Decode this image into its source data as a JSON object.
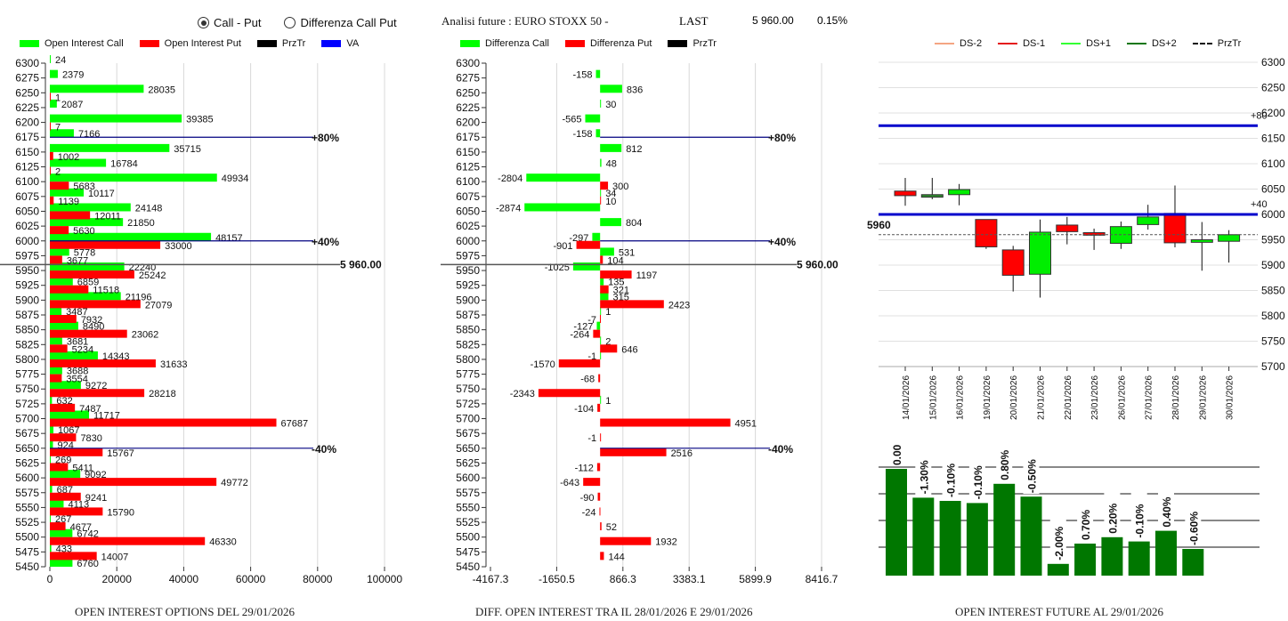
{
  "controls": {
    "radio_options": [
      {
        "label": "Call - Put",
        "selected": true
      },
      {
        "label": "Differenza Call Put",
        "selected": false
      }
    ]
  },
  "header": {
    "title": "Analisi future : EURO STOXX 50 -",
    "last_label": "LAST",
    "last_price": "5 960.00",
    "change_pct": "0.15%"
  },
  "chart_data": [
    {
      "id": "oi-options",
      "type": "bar",
      "orientation": "horizontal",
      "title": "OPEN INTEREST OPTIONS DEL 29/01/2026",
      "legend": [
        {
          "name": "Open Interest Call",
          "color": "#00ff00"
        },
        {
          "name": "Open Interest Put",
          "color": "#ff0000"
        },
        {
          "name": "PrzTr",
          "color": "#000000"
        },
        {
          "name": "VA",
          "color": "#0000ff"
        }
      ],
      "legend_position": "top",
      "categories": [
        6300,
        6275,
        6250,
        6225,
        6200,
        6175,
        6150,
        6125,
        6100,
        6075,
        6050,
        6025,
        6000,
        5975,
        5950,
        5925,
        5900,
        5875,
        5850,
        5825,
        5800,
        5775,
        5750,
        5725,
        5700,
        5675,
        5650,
        5625,
        5600,
        5575,
        5550,
        5525,
        5500,
        5475,
        5450
      ],
      "series": [
        {
          "name": "Open Interest Call",
          "color": "#00ff00",
          "values": [
            24,
            2379,
            28035,
            2087,
            39385,
            7166,
            35715,
            16784,
            49934,
            10117,
            24148,
            21850,
            48157,
            5778,
            22240,
            6859,
            21196,
            3487,
            8490,
            3681,
            14343,
            3688,
            9272,
            632,
            11717,
            1067,
            924,
            269,
            9092,
            687,
            4113,
            267,
            6742,
            433,
            6760
          ]
        },
        {
          "name": "Open Interest Put",
          "color": "#ff0000",
          "values": [
            null,
            null,
            1,
            null,
            7,
            null,
            1002,
            2,
            5683,
            1139,
            12011,
            5630,
            33000,
            3677,
            25242,
            11518,
            27079,
            7932,
            23062,
            5234,
            31633,
            3554,
            28218,
            7487,
            67687,
            7830,
            15767,
            5411,
            49772,
            9241,
            15790,
            4677,
            46330,
            14007,
            null
          ]
        }
      ],
      "x_ticks": [
        "0",
        "20000",
        "40000",
        "60000",
        "80000",
        "100000"
      ],
      "xlim": [
        0,
        100000
      ],
      "grid": true,
      "reference_lines": [
        {
          "label": "+80%",
          "y": 6175,
          "color": "#000080"
        },
        {
          "label": "+40%",
          "y": 6000,
          "color": "#000080"
        },
        {
          "label": "-40%",
          "y": 5650,
          "color": "#000080"
        },
        {
          "label": "5 960.00",
          "y": 5960,
          "color": "#555555",
          "kind": "PrzTr"
        }
      ]
    },
    {
      "id": "oi-diff",
      "type": "bar",
      "orientation": "horizontal",
      "title": "DIFF. OPEN INTEREST TRA IL 28/01/2026 E 29/01/2026",
      "legend": [
        {
          "name": "Differenza Call",
          "color": "#00ff00"
        },
        {
          "name": "Differenza Put",
          "color": "#ff0000"
        },
        {
          "name": "PrzTr",
          "color": "#000000"
        }
      ],
      "legend_position": "top",
      "categories": [
        6300,
        6275,
        6250,
        6225,
        6200,
        6175,
        6150,
        6125,
        6100,
        6075,
        6050,
        6025,
        6000,
        5975,
        5950,
        5925,
        5900,
        5875,
        5850,
        5825,
        5800,
        5775,
        5750,
        5725,
        5700,
        5675,
        5650,
        5625,
        5600,
        5575,
        5550,
        5525,
        5500,
        5475,
        5450
      ],
      "series": [
        {
          "name": "Differenza Call",
          "color": "#00ff00",
          "values": [
            null,
            -158,
            836,
            30,
            -565,
            -158,
            812,
            48,
            -2804,
            34,
            -2874,
            804,
            -297,
            531,
            -1025,
            135,
            315,
            1,
            -127,
            2,
            -1,
            null,
            null,
            1,
            null,
            null,
            null,
            null,
            null,
            null,
            null,
            null,
            null,
            null,
            null
          ]
        },
        {
          "name": "Differenza Put",
          "color": "#ff0000",
          "values": [
            null,
            null,
            null,
            null,
            null,
            null,
            null,
            null,
            300,
            10,
            null,
            null,
            -901,
            104,
            1197,
            321,
            2423,
            -7,
            -264,
            646,
            -1570,
            -68,
            -2343,
            -104,
            4951,
            -1,
            2516,
            -112,
            -643,
            -90,
            -24,
            52,
            1932,
            144,
            null
          ]
        }
      ],
      "x_ticks": [
        "-4167.3",
        "-1650.5",
        "866.3",
        "3383.1",
        "5899.9",
        "8416.7"
      ],
      "xlim": [
        -4167.3,
        8416.7
      ],
      "grid": true,
      "reference_lines": [
        {
          "label": "+80%",
          "y": 6175,
          "color": "#000080"
        },
        {
          "label": "+40%",
          "y": 6000,
          "color": "#000080"
        },
        {
          "label": "-40%",
          "y": 5650,
          "color": "#000080"
        },
        {
          "label": "5 960.00",
          "y": 5960,
          "color": "#555555",
          "kind": "PrzTr"
        }
      ]
    },
    {
      "id": "candles",
      "type": "candlestick",
      "legend": [
        {
          "name": "DS-2",
          "color": "#f4a582",
          "style": "solid"
        },
        {
          "name": "DS-1",
          "color": "#e41a1c",
          "style": "solid"
        },
        {
          "name": "DS+1",
          "color": "#33ff33",
          "style": "solid"
        },
        {
          "name": "DS+2",
          "color": "#117711",
          "style": "solid"
        },
        {
          "name": "PrzTr",
          "color": "#111111",
          "style": "dashed"
        }
      ],
      "legend_position": "top",
      "categories": [
        "14/01/2026",
        "15/01/2026",
        "16/01/2026",
        "19/01/2026",
        "20/01/2026",
        "21/01/2026",
        "22/01/2026",
        "23/01/2026",
        "26/01/2026",
        "27/01/2026",
        "28/01/2026",
        "29/01/2026",
        "30/01/2026"
      ],
      "ohlc": [
        {
          "open": 6046,
          "high": 6072,
          "low": 6017,
          "close": 6037,
          "color": "red"
        },
        {
          "open": 6034,
          "high": 6072,
          "low": 6030,
          "close": 6039,
          "color": "darkgreen"
        },
        {
          "open": 6039,
          "high": 6060,
          "low": 6018,
          "close": 6049,
          "color": "green"
        },
        {
          "open": 5990,
          "high": 5990,
          "low": 5932,
          "close": 5936,
          "color": "red"
        },
        {
          "open": 5930,
          "high": 5938,
          "low": 5848,
          "close": 5880,
          "color": "red"
        },
        {
          "open": 5882,
          "high": 5990,
          "low": 5836,
          "close": 5965,
          "color": "green"
        },
        {
          "open": 5979,
          "high": 5995,
          "low": 5941,
          "close": 5966,
          "color": "red"
        },
        {
          "open": 5964,
          "high": 5972,
          "low": 5930,
          "close": 5959,
          "color": "red"
        },
        {
          "open": 5943,
          "high": 5986,
          "low": 5932,
          "close": 5976,
          "color": "green"
        },
        {
          "open": 5980,
          "high": 6019,
          "low": 5970,
          "close": 5995,
          "color": "green"
        },
        {
          "open": 6002,
          "high": 6057,
          "low": 5935,
          "close": 5944,
          "color": "red"
        },
        {
          "open": 5945,
          "high": 5985,
          "low": 5889,
          "close": 5950,
          "color": "green"
        },
        {
          "open": 5947,
          "high": 5969,
          "low": 5905,
          "close": 5960,
          "color": "green"
        }
      ],
      "y_ticks": [
        "6300",
        "6250",
        "6200",
        "6150",
        "6100",
        "6050",
        "6000",
        "5950",
        "5900",
        "5850",
        "5800",
        "5750",
        "5700"
      ],
      "ylim": [
        5700,
        6300
      ],
      "grid": true,
      "reference_lines": [
        {
          "label": "+80",
          "y": 6175,
          "color": "#0000cc"
        },
        {
          "label": "+40",
          "y": 6000,
          "color": "#0000cc"
        },
        {
          "label": "5960",
          "y": 5960,
          "color": "#555555",
          "kind": "PrzTr"
        }
      ]
    },
    {
      "id": "oi-future",
      "type": "bar",
      "title": "OPEN INTEREST FUTURE AL 29/01/2026",
      "categories": [
        "14/01/2026",
        "15/01/2026",
        "16/01/2026",
        "19/01/2026",
        "20/01/2026",
        "21/01/2026",
        "22/01/2026",
        "23/01/2026",
        "26/01/2026",
        "27/01/2026",
        "28/01/2026",
        "29/01/2026"
      ],
      "labels": [
        "0.00%",
        "-1.30%",
        "-0.10%",
        "-0.10%",
        "0.80%",
        "-0.50%",
        "-2.00%",
        "0.70%",
        "0.20%",
        "-0.10%",
        "0.40%",
        "-0.60%"
      ],
      "relative_heights": [
        1.0,
        0.73,
        0.7,
        0.68,
        0.86,
        0.74,
        0.11,
        0.3,
        0.36,
        0.32,
        0.42,
        0.25
      ],
      "color": "#007700",
      "grid": true
    }
  ]
}
